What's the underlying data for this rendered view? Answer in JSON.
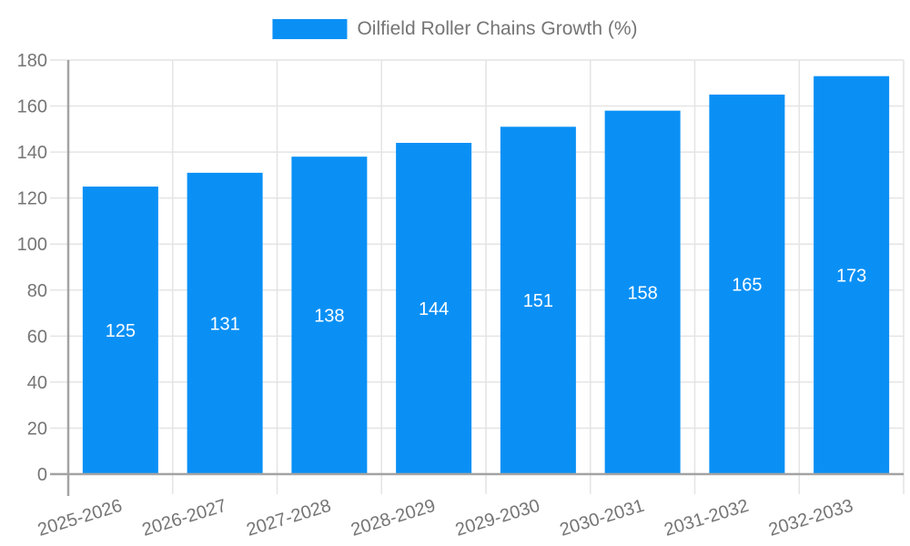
{
  "chart_data": {
    "type": "bar",
    "legend": "Oilfield Roller Chains Growth (%)",
    "legend_position": "top-center",
    "categories": [
      "2025-2026",
      "2026-2027",
      "2027-2028",
      "2028-2029",
      "2029-2030",
      "2030-2031",
      "2031-2032",
      "2032-2033"
    ],
    "values": [
      125,
      131,
      138,
      144,
      151,
      158,
      165,
      173
    ],
    "ylim": [
      0,
      180
    ],
    "ytick_step": 20,
    "grid": "on",
    "x_label_rotation_deg": -17,
    "colors": {
      "bar": "#0a90f5",
      "grid": "#e4e4e4",
      "axis": "#a3a3a3",
      "tick_text": "#757575",
      "value_label": "#ffffff",
      "background": "#ffffff"
    }
  }
}
